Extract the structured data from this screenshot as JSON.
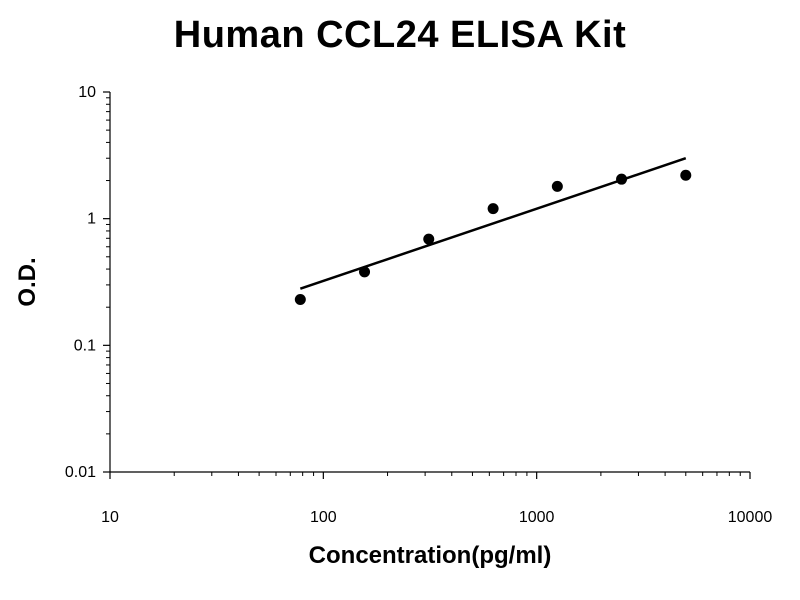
{
  "chart_data": {
    "type": "scatter",
    "title": "Human CCL24 ELISA Kit",
    "xlabel": "Concentration(pg/ml)",
    "ylabel": "O.D.",
    "x_scale": "log",
    "y_scale": "log",
    "xlim": [
      10,
      10000
    ],
    "ylim": [
      0.01,
      10
    ],
    "x_ticks": [
      10,
      100,
      1000,
      10000
    ],
    "x_tick_labels": [
      "10",
      "100",
      "1000",
      "10000"
    ],
    "y_ticks": [
      0.01,
      0.1,
      1,
      10
    ],
    "y_tick_labels": [
      "0.01",
      "0.1",
      "1",
      "10"
    ],
    "grid": false,
    "legend": "none",
    "series": [
      {
        "x": [
          78,
          156,
          312,
          625,
          1250,
          2500,
          5000
        ],
        "y": [
          0.23,
          0.38,
          0.69,
          1.2,
          1.8,
          2.05,
          2.2
        ]
      }
    ],
    "fit_line": {
      "x": [
        78,
        5000
      ],
      "y": [
        0.28,
        3.0
      ]
    },
    "colors": {
      "points": "#000000",
      "line": "#000000",
      "axes": "#000000"
    }
  }
}
